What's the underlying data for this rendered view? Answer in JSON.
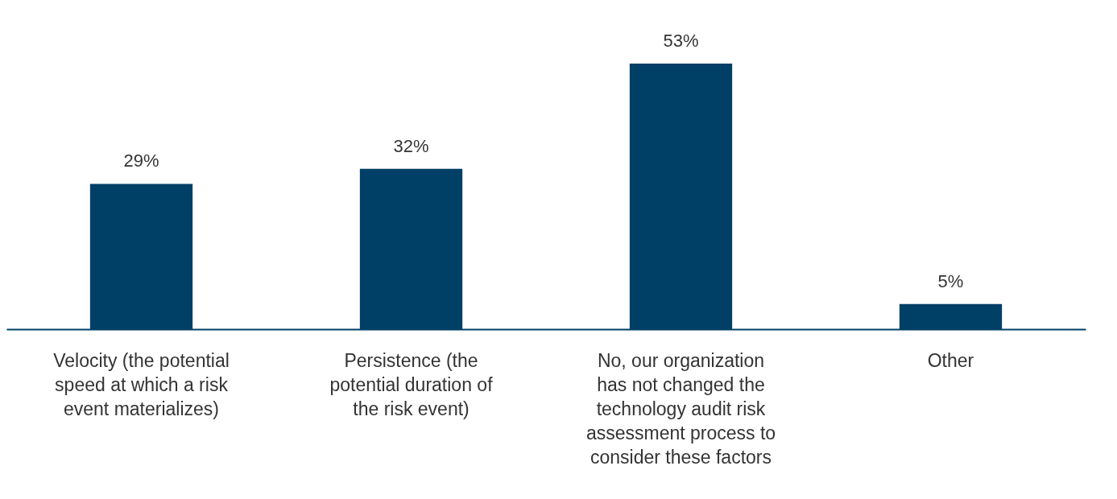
{
  "chart_data": {
    "type": "bar",
    "categories": [
      "Velocity (the potential speed at which a risk event materializes)",
      "Persistence (the potential duration of the risk event)",
      "No, our organization has not changed the technology audit risk assessment process to consider these factors",
      "Other"
    ],
    "values": [
      29,
      32,
      53,
      5
    ],
    "value_labels": [
      "29%",
      "32%",
      "53%",
      "5%"
    ],
    "color": "#003f66"
  }
}
